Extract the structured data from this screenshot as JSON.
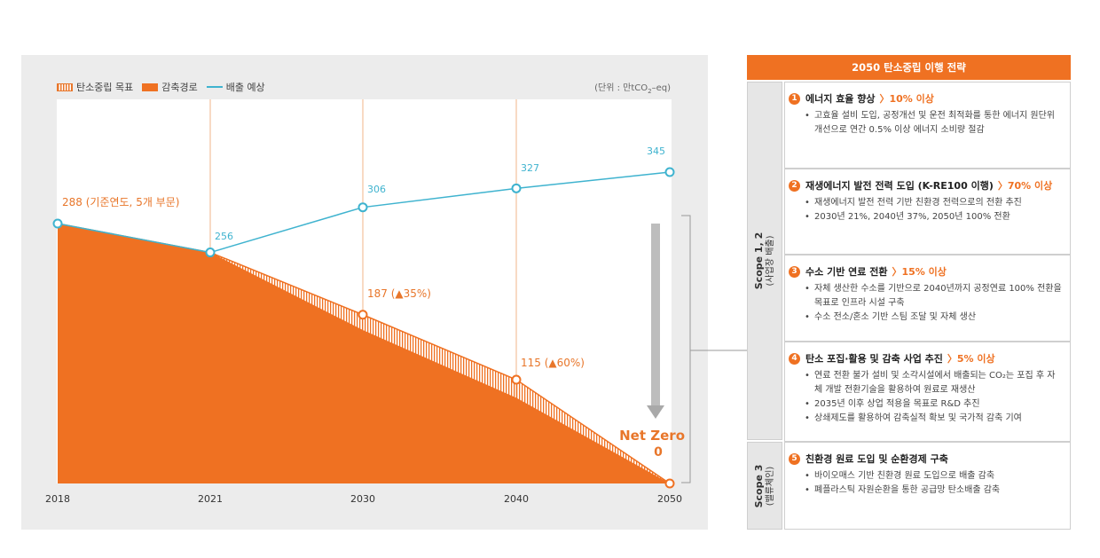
{
  "chart_data": {
    "type": "area",
    "x": [
      "2018",
      "2021",
      "2030",
      "2040",
      "2050"
    ],
    "series": [
      {
        "name": "탄소중립 목표",
        "values": [
          288,
          256,
          187,
          115,
          0
        ]
      },
      {
        "name": "감축경로",
        "values": [
          288,
          256,
          170,
          95,
          0
        ]
      },
      {
        "name": "배출 예상",
        "values": [
          288,
          256,
          306,
          327,
          345
        ]
      }
    ],
    "ylim": [
      0,
      360
    ],
    "grid": false,
    "legend": "top-left",
    "unit": "(단위 : 만tCO₂-eq)",
    "annotations": {
      "base": "288 (기준연도, 5개 부문)",
      "v2021": "256",
      "v2030": "187 (▲35%)",
      "v2040": "115 (▲60%)",
      "e2030": "306",
      "e2040": "327",
      "e2050": "345",
      "net_zero": "Net Zero",
      "net_zero_value": "0"
    },
    "colors": {
      "fill": "#ef7122",
      "line": "#3fb3cf",
      "text": "#e8762a"
    }
  },
  "legend": {
    "target": "탄소중립 목표",
    "path": "감축경로",
    "forecast": "배출 예상"
  },
  "unit": {
    "prefix": "(단위 : 만tCO",
    "sub": "2",
    "suffix": "–eq)"
  },
  "panel": {
    "title": "2050 탄소중립 이행 전략",
    "scope12": {
      "main": "Scope 1, 2",
      "sub": "(사업장 배출)"
    },
    "scope3": {
      "main": "Scope 3",
      "sub": "(밸류체인)"
    },
    "items": [
      {
        "num": "1",
        "title": "에너지 효율 향상",
        "target": "〉10% 이상",
        "bullets": [
          "고효율 설비 도입, 공정개선 및 운전 최적화를 통한 에너지 원단위 개선으로 연간 0.5% 이상 에너지 소비량 절감"
        ]
      },
      {
        "num": "2",
        "title": "재생에너지 발전 전력 도입 (K-RE100 이행)",
        "target": "〉70% 이상",
        "bullets": [
          "재생에너지 발전 전력 기반 친환경 전력으로의 전환 추진",
          "2030년 21%, 2040년 37%, 2050년 100% 전환"
        ]
      },
      {
        "num": "3",
        "title": "수소 기반 연료 전환",
        "target": "〉15% 이상",
        "bullets": [
          "자체 생산한 수소를 기반으로 2040년까지 공정연료 100% 전환을 목표로 인프라 시설 구축",
          "수소 전소/혼소 기반 스팀 조달 및 자체 생산"
        ]
      },
      {
        "num": "4",
        "title": "탄소 포집·활용 및 감축 사업 추진",
        "target": "〉5% 이상",
        "bullets": [
          "연료 전환 불가 설비 및 소각시설에서 배출되는 CO₂는 포집 후 자체 개발 전환기술을 활용하여 원료로 재생산",
          "2035년 이후 상업 적용을 목표로 R&D 추진",
          "상쇄제도를 활용하여 감축실적 확보 및 국가적 감축 기여"
        ]
      },
      {
        "num": "5",
        "title": "친환경 원료 도입 및 순환경제 구축",
        "target": "",
        "bullets": [
          "바이오매스 기반 친환경 원료 도입으로 배출 감축",
          "폐플라스틱 자원순환을 통한 공급망 탄소배출 감축"
        ]
      }
    ]
  }
}
